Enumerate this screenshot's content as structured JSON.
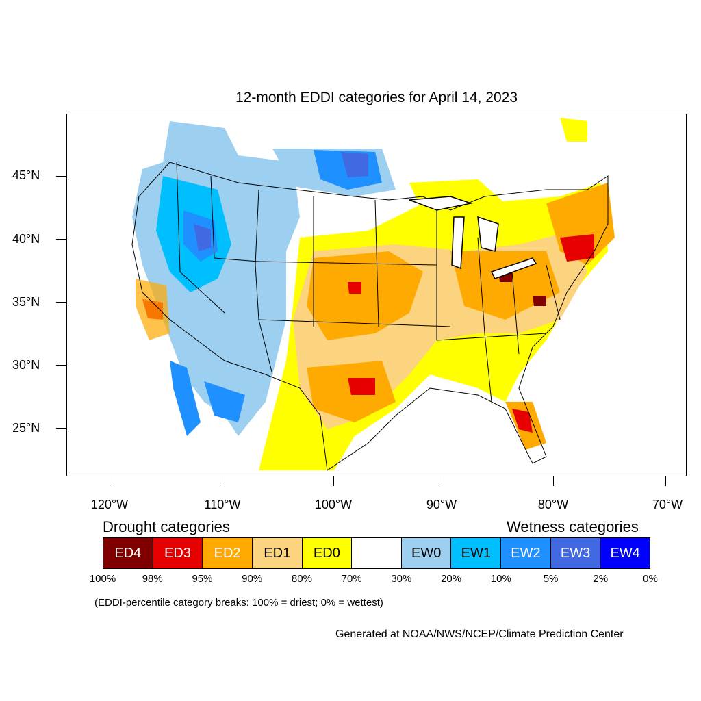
{
  "title": "12-month EDDI categories for April 14, 2023",
  "lat_labels": [
    "45°N",
    "40°N",
    "35°N",
    "30°N",
    "25°N"
  ],
  "lon_labels": [
    "120°W",
    "110°W",
    "100°W",
    "90°W",
    "80°W",
    "70°W"
  ],
  "drought_heading": "Drought categories",
  "wetness_heading": "Wetness categories",
  "legend": [
    {
      "label": "ED4",
      "color": "#800000",
      "text_color": "#ffffff"
    },
    {
      "label": "ED3",
      "color": "#e60000",
      "text_color": "#ffffff"
    },
    {
      "label": "ED2",
      "color": "#ffaa00",
      "text_color": "#ffffff"
    },
    {
      "label": "ED1",
      "color": "#fcd37f",
      "text_color": "#000000"
    },
    {
      "label": "ED0",
      "color": "#ffff00",
      "text_color": "#000000"
    },
    {
      "label": "",
      "color": "#ffffff",
      "text_color": "#000000"
    },
    {
      "label": "EW0",
      "color": "#9ccff0",
      "text_color": "#000000"
    },
    {
      "label": "EW1",
      "color": "#00bfff",
      "text_color": "#000000"
    },
    {
      "label": "EW2",
      "color": "#1e90ff",
      "text_color": "#ffffff"
    },
    {
      "label": "EW3",
      "color": "#4169e1",
      "text_color": "#ffffff"
    },
    {
      "label": "EW4",
      "color": "#0000ff",
      "text_color": "#ffffff"
    }
  ],
  "break_labels": [
    "100%",
    "98%",
    "95%",
    "90%",
    "80%",
    "70%",
    "30%",
    "20%",
    "10%",
    "5%",
    "2%",
    "0%"
  ],
  "note": "(EDDI-percentile category breaks: 100% = driest; 0% = wettest)",
  "credit": "Generated at NOAA/NWS/NCEP/Climate Prediction Center"
}
